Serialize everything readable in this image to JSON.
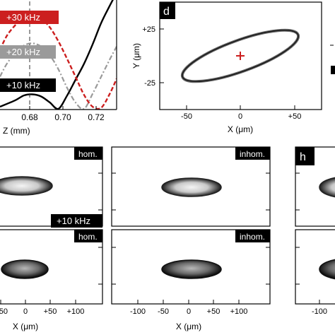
{
  "panel_c": {
    "labels": [
      "+30 kHz",
      "+20 kHz",
      "+10 kHz"
    ],
    "label_colors": [
      "#cc1f1f",
      "#9a9a9a",
      "#000000"
    ],
    "x_ticks": [
      "0.68",
      "0.70",
      "0.72"
    ],
    "x_axis_label": "Z (mm)"
  },
  "panel_d": {
    "letter": "d",
    "y_ticks": [
      "+25",
      "-25"
    ],
    "y_axis_label": "Y (μm)",
    "x_ticks": [
      "-50",
      "0",
      "+50"
    ],
    "x_axis_label": "X (μm)",
    "marker_color": "#cc1f1f"
  },
  "bottom_panels": {
    "col1_tags": [
      "hom.",
      "hom."
    ],
    "col2_tags": [
      "inhom.",
      "inhom."
    ],
    "freq_label": "+10 kHz",
    "letter_h": "h",
    "col1_x_ticks": [
      "-50",
      "0",
      "+50",
      "+100"
    ],
    "col1_x_label": "X (μm)",
    "col2_x_ticks": [
      "-100",
      "-50",
      "0",
      "+50",
      "+100"
    ],
    "col2_x_label": "X (μm)",
    "col3_x_ticks": [
      "-100"
    ]
  },
  "chart_data": {
    "type": "line",
    "xlabel": "Z (mm)",
    "ylabel": "",
    "xlim": [
      0.661,
      0.729
    ],
    "series": [
      {
        "name": "+10 kHz",
        "x": [
          0.661,
          0.67,
          0.675,
          0.68,
          0.685,
          0.69,
          0.695,
          0.7,
          0.705,
          0.71,
          0.715,
          0.72,
          0.725,
          0.729
        ],
        "y": [
          0.02,
          0.08,
          0.125,
          0.135,
          0.115,
          0.06,
          0.0,
          0.12,
          0.27,
          0.42,
          0.6,
          0.8,
          0.96,
          1.08
        ]
      },
      {
        "name": "+20 kHz",
        "x": [
          0.661,
          0.665,
          0.67,
          0.675,
          0.68,
          0.685,
          0.69,
          0.695,
          0.7,
          0.705,
          0.71,
          0.715,
          0.72,
          0.725,
          0.729
        ],
        "y": [
          0.3,
          0.42,
          0.52,
          0.59,
          0.61,
          0.58,
          0.5,
          0.37,
          0.2,
          0.06,
          0.0,
          0.14,
          0.3,
          0.46,
          0.58
        ]
      },
      {
        "name": "+30 kHz",
        "x": [
          0.661,
          0.665,
          0.67,
          0.675,
          0.68,
          0.685,
          0.69,
          0.695,
          0.7,
          0.705,
          0.71,
          0.715,
          0.72,
          0.725,
          0.729
        ],
        "y": [
          0.55,
          0.68,
          0.78,
          0.85,
          0.87,
          0.84,
          0.76,
          0.63,
          0.47,
          0.3,
          0.13,
          0.02,
          0.01,
          0.14,
          0.28
        ]
      }
    ]
  }
}
